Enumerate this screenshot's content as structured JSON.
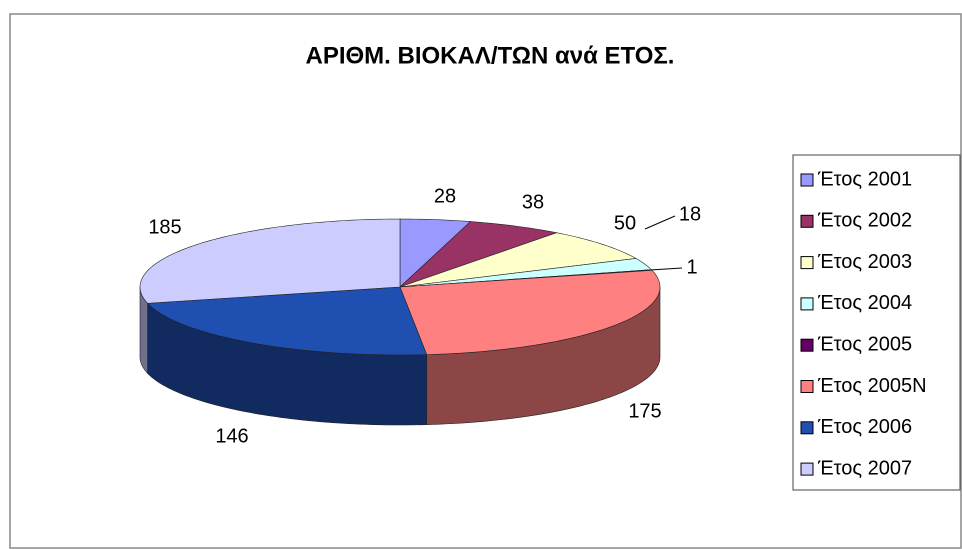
{
  "chart_data": {
    "type": "pie3d",
    "title": "ΑΡΙΘΜ. ΒΙΟΚΑΛ/ΤΩΝ ανά ΕΤΟΣ.",
    "categories": [
      "Έτος 2001",
      "Έτος 2002",
      "Έτος 2003",
      "Έτος 2004",
      "Έτος 2005",
      "Έτος 2005N",
      "Έτος 2006",
      "Έτος 2007"
    ],
    "values": [
      28,
      38,
      50,
      18,
      1,
      175,
      146,
      185
    ],
    "colors": [
      "#9999ff",
      "#993366",
      "#ffffcc",
      "#ccffff",
      "#660066",
      "#ff8080",
      "#1f4fb0",
      "#ccccff"
    ],
    "legend": "right"
  }
}
